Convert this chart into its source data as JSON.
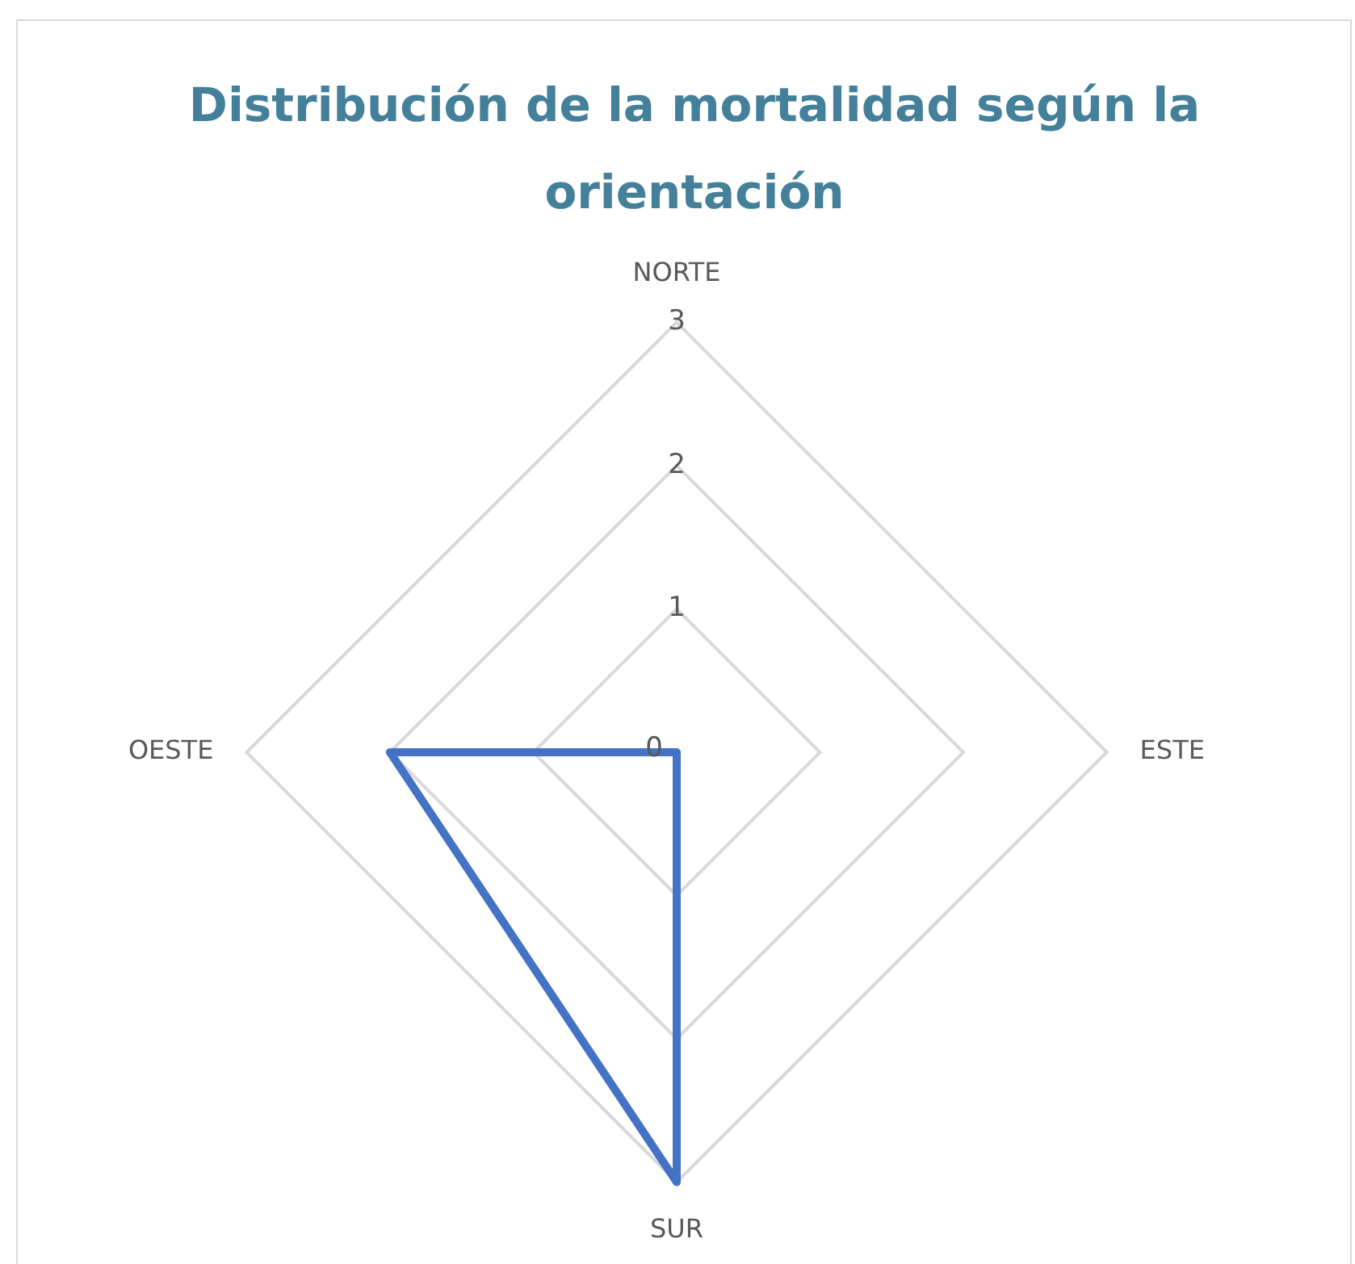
{
  "chart_data": {
    "type": "radar",
    "title": "Distribución de la mortalidad según la orientación",
    "categories": [
      "NORTE",
      "ESTE",
      "SUR",
      "OESTE"
    ],
    "series": [
      {
        "color": "#4472c4",
        "values": [
          0,
          0,
          3,
          2
        ]
      }
    ],
    "ylim": [
      0,
      3
    ],
    "yticks": [
      0,
      1,
      2,
      3
    ],
    "grid": true,
    "legend": false,
    "marker": "none",
    "line_style": "solid"
  }
}
